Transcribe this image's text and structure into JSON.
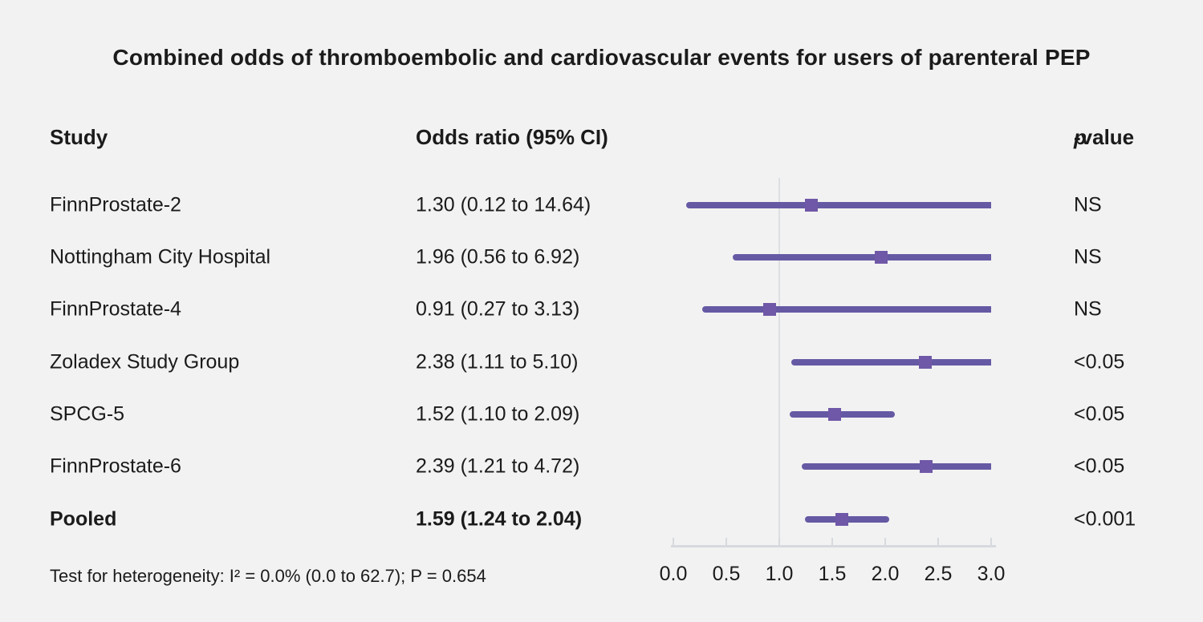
{
  "title": "Combined odds of thromboembolic and cardiovascular events for users of parenteral PEP",
  "columns": {
    "study": "Study",
    "odds_ratio": "Odds ratio (95% CI)",
    "p_italic": "p",
    "p_rest": "-value"
  },
  "footer": "Test for heterogeneity: I² = 0.0% (0.0 to 62.7); P = 0.654",
  "colors": {
    "background": "#f2f2f2",
    "ci_line": "#6659a4",
    "marker": "#6f58a7",
    "axis": "#d6dade",
    "refline": "#dcdfe4",
    "text": "#1b1b1b"
  },
  "chart_data": {
    "type": "forest",
    "title": "Combined odds of thromboembolic and cardiovascular events for users of parenteral PEP",
    "xlabel": "",
    "axis": {
      "min": 0.0,
      "max": 3.0,
      "tick_values": [
        0.0,
        0.5,
        1.0,
        1.5,
        2.0,
        2.5,
        3.0
      ],
      "tick_labels": [
        "0.0",
        "0.5",
        "1.0",
        "1.5",
        "2.0",
        "2.5",
        "3.0"
      ],
      "reference_line": 1.0,
      "grid": false
    },
    "rows": [
      {
        "study": "FinnProstate-2",
        "or_text": "1.30 (0.12 to 14.64)",
        "or": 1.3,
        "ci_low": 0.12,
        "ci_high": 14.64,
        "p": "NS",
        "bold": false
      },
      {
        "study": "Nottingham City Hospital",
        "or_text": "1.96 (0.56 to 6.92)",
        "or": 1.96,
        "ci_low": 0.56,
        "ci_high": 6.92,
        "p": "NS",
        "bold": false
      },
      {
        "study": "FinnProstate-4",
        "or_text": "0.91 (0.27 to 3.13)",
        "or": 0.91,
        "ci_low": 0.27,
        "ci_high": 3.13,
        "p": "NS",
        "bold": false
      },
      {
        "study": "Zoladex Study Group",
        "or_text": "2.38 (1.11 to 5.10)",
        "or": 2.38,
        "ci_low": 1.11,
        "ci_high": 5.1,
        "p": "<0.05",
        "bold": false
      },
      {
        "study": "SPCG-5",
        "or_text": "1.52 (1.10 to 2.09)",
        "or": 1.52,
        "ci_low": 1.1,
        "ci_high": 2.09,
        "p": "<0.05",
        "bold": false
      },
      {
        "study": "FinnProstate-6",
        "or_text": "2.39 (1.21 to 4.72)",
        "or": 2.39,
        "ci_low": 1.21,
        "ci_high": 4.72,
        "p": "<0.05",
        "bold": false
      },
      {
        "study": "Pooled",
        "or_text": "1.59 (1.24 to 2.04)",
        "or": 1.59,
        "ci_low": 1.24,
        "ci_high": 2.04,
        "p": "<0.001",
        "bold": true
      }
    ]
  }
}
